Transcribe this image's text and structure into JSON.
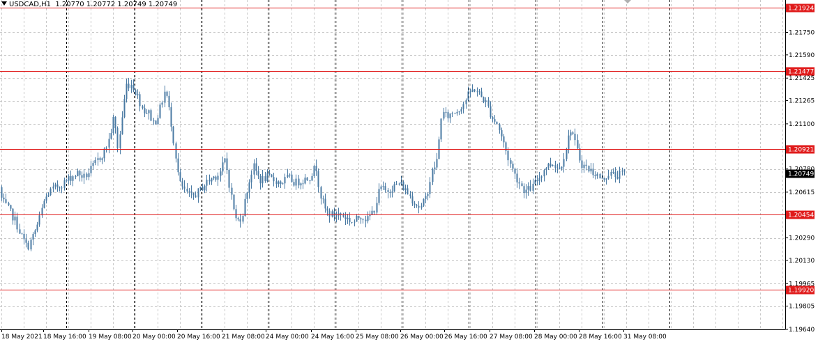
{
  "colors": {
    "background": "#ffffff",
    "grid": "#c8c8c8",
    "candle": "#4a7aa3",
    "level_line": "#e01b1b",
    "price_tag": "#000000",
    "axis": "#000000"
  },
  "header": {
    "symbol": "USDCAD,H1",
    "ohlc": "1.20770 1.20772 1.20749 1.20749"
  },
  "chart_data": {
    "type": "candlestick",
    "symbol": "USDCAD",
    "timeframe": "H1",
    "ylim": [
      1.1964,
      1.2198
    ],
    "y_ticks": [
      "1.21750",
      "1.21590",
      "1.21425",
      "1.21265",
      "1.21100",
      "1.20780",
      "1.20615",
      "1.20290",
      "1.20130",
      "1.19965",
      "1.19805",
      "1.19640"
    ],
    "x_labels": [
      "18 May 2021",
      "18 May 16:00",
      "19 May 08:00",
      "20 May 00:00",
      "20 May 16:00",
      "21 May 08:00",
      "24 May 00:00",
      "24 May 16:00",
      "25 May 08:00",
      "26 May 00:00",
      "26 May 16:00",
      "27 May 08:00",
      "28 May 00:00",
      "28 May 16:00",
      "31 May 08:00"
    ],
    "levels": [
      "1.21924",
      "1.21477",
      "1.20921",
      "1.20454",
      "1.19920"
    ],
    "current_price": "1.20749",
    "series_path": [
      [
        0,
        1.207
      ],
      [
        6,
        1.2055
      ],
      [
        14,
        1.205
      ],
      [
        24,
        1.2042
      ],
      [
        34,
        1.203
      ],
      [
        42,
        1.2022
      ],
      [
        50,
        1.203
      ],
      [
        58,
        1.204
      ],
      [
        66,
        1.2055
      ],
      [
        74,
        1.2062
      ],
      [
        84,
        1.2065
      ],
      [
        94,
        1.2068
      ],
      [
        104,
        1.2072
      ],
      [
        114,
        1.2075
      ],
      [
        124,
        1.2072
      ],
      [
        134,
        1.2078
      ],
      [
        144,
        1.2085
      ],
      [
        152,
        1.209
      ],
      [
        160,
        1.21
      ],
      [
        166,
        1.2115
      ],
      [
        172,
        1.2092
      ],
      [
        178,
        1.2115
      ],
      [
        184,
        1.2138
      ],
      [
        192,
        1.2138
      ],
      [
        200,
        1.213
      ],
      [
        208,
        1.212
      ],
      [
        216,
        1.2118
      ],
      [
        224,
        1.211
      ],
      [
        232,
        1.212
      ],
      [
        240,
        1.2135
      ],
      [
        248,
        1.2112
      ],
      [
        254,
        1.209
      ],
      [
        260,
        1.2068
      ],
      [
        268,
        1.2062
      ],
      [
        278,
        1.2058
      ],
      [
        288,
        1.2062
      ],
      [
        298,
        1.2068
      ],
      [
        308,
        1.2072
      ],
      [
        318,
        1.2075
      ],
      [
        326,
        1.2085
      ],
      [
        334,
        1.206
      ],
      [
        342,
        1.204
      ],
      [
        350,
        1.2045
      ],
      [
        358,
        1.2065
      ],
      [
        366,
        1.208
      ],
      [
        376,
        1.207
      ],
      [
        386,
        1.2072
      ],
      [
        396,
        1.207
      ],
      [
        406,
        1.2068
      ],
      [
        416,
        1.2072
      ],
      [
        426,
        1.2068
      ],
      [
        436,
        1.207
      ],
      [
        446,
        1.2072
      ],
      [
        456,
        1.208
      ],
      [
        462,
        1.206
      ],
      [
        470,
        1.2048
      ],
      [
        480,
        1.2045
      ],
      [
        490,
        1.2046
      ],
      [
        500,
        1.2043
      ],
      [
        510,
        1.204
      ],
      [
        520,
        1.2045
      ],
      [
        530,
        1.2042
      ],
      [
        540,
        1.205
      ],
      [
        548,
        1.2065
      ],
      [
        556,
        1.2062
      ],
      [
        566,
        1.2065
      ],
      [
        576,
        1.2068
      ],
      [
        586,
        1.2062
      ],
      [
        596,
        1.2055
      ],
      [
        606,
        1.205
      ],
      [
        614,
        1.2058
      ],
      [
        622,
        1.2075
      ],
      [
        630,
        1.2085
      ],
      [
        636,
        1.2118
      ],
      [
        644,
        1.2115
      ],
      [
        652,
        1.2118
      ],
      [
        660,
        1.212
      ],
      [
        668,
        1.2125
      ],
      [
        676,
        1.2132
      ],
      [
        684,
        1.2135
      ],
      [
        692,
        1.213
      ],
      [
        700,
        1.2125
      ],
      [
        708,
        1.2115
      ],
      [
        716,
        1.211
      ],
      [
        724,
        1.2098
      ],
      [
        732,
        1.2085
      ],
      [
        740,
        1.2075
      ],
      [
        748,
        1.2068
      ],
      [
        756,
        1.2062
      ],
      [
        766,
        1.2065
      ],
      [
        776,
        1.2072
      ],
      [
        786,
        1.208
      ],
      [
        796,
        1.2082
      ],
      [
        806,
        1.2078
      ],
      [
        814,
        1.2092
      ],
      [
        822,
        1.2108
      ],
      [
        828,
        1.2095
      ],
      [
        836,
        1.2082
      ],
      [
        846,
        1.2078
      ],
      [
        856,
        1.2075
      ],
      [
        866,
        1.207
      ],
      [
        876,
        1.2075
      ],
      [
        886,
        1.2073
      ],
      [
        896,
        1.2075
      ]
    ],
    "grid": true
  }
}
